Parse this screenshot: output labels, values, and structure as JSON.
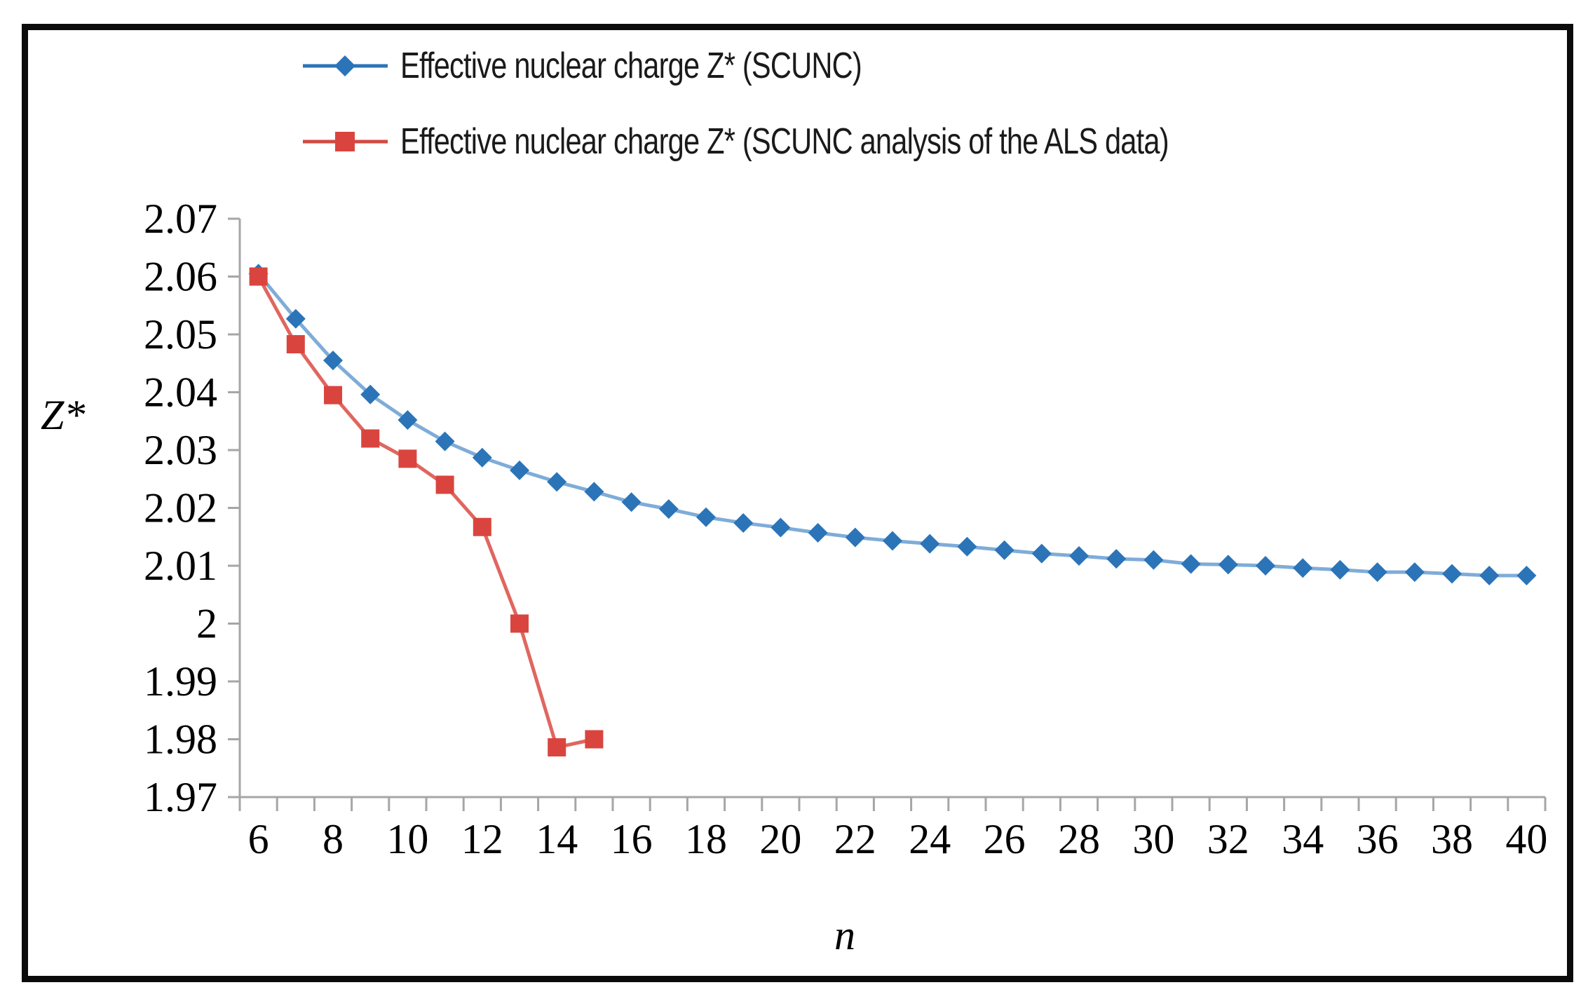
{
  "legend": {
    "items": [
      {
        "label": "Effective nuclear charge Z* (SCUNC)"
      },
      {
        "label": "Effective nuclear charge Z* (SCUNC analysis of the ALS data)"
      }
    ]
  },
  "colors": {
    "blue_marker": "#2B74B8",
    "blue_line": "#7FACD8",
    "red_marker": "#D9453E",
    "red_line": "#E0665F",
    "red_line_legend": "#D04B44",
    "axis": "#A6A6A6",
    "text": "#000000",
    "frame": "#0B0B0B"
  },
  "chart_data": {
    "type": "line",
    "title": "",
    "xlabel": "n",
    "ylabel": "Z*",
    "xlim": [
      6,
      40
    ],
    "ylim": [
      1.97,
      2.07
    ],
    "grid": false,
    "legend_position": "top-left",
    "x_tick_labels": [
      "6",
      "8",
      "10",
      "12",
      "14",
      "16",
      "18",
      "20",
      "22",
      "24",
      "26",
      "28",
      "30",
      "32",
      "34",
      "36",
      "38",
      "40"
    ],
    "x_tick_values": [
      6,
      8,
      10,
      12,
      14,
      16,
      18,
      20,
      22,
      24,
      26,
      28,
      30,
      32,
      34,
      36,
      38,
      40
    ],
    "y_tick_labels": [
      "2.07",
      "2.06",
      "2.05",
      "2.04",
      "2.03",
      "2.02",
      "2.01",
      "2",
      "1.99",
      "1.98",
      "1.97"
    ],
    "y_tick_values": [
      2.07,
      2.06,
      2.05,
      2.04,
      2.03,
      2.02,
      2.01,
      2.0,
      1.99,
      1.98,
      1.97
    ],
    "series": [
      {
        "name": "Effective nuclear charge Z* (SCUNC)",
        "marker": "diamond",
        "x": [
          6,
          7,
          8,
          9,
          10,
          11,
          12,
          13,
          14,
          15,
          16,
          17,
          18,
          19,
          20,
          21,
          22,
          23,
          24,
          25,
          26,
          27,
          28,
          29,
          30,
          31,
          32,
          33,
          34,
          35,
          36,
          37,
          38,
          39,
          40
        ],
        "y": [
          2.0605,
          2.0527,
          2.0455,
          2.0396,
          2.0352,
          2.0315,
          2.0287,
          2.0265,
          2.0245,
          2.0228,
          2.021,
          2.0198,
          2.0184,
          2.0174,
          2.0166,
          2.0157,
          2.0149,
          2.0143,
          2.0138,
          2.0133,
          2.0127,
          2.0121,
          2.0117,
          2.0112,
          2.011,
          2.0103,
          2.0102,
          2.01,
          2.0096,
          2.0093,
          2.0089,
          2.0089,
          2.0086,
          2.0083,
          2.0083
        ]
      },
      {
        "name": "Effective nuclear charge Z* (SCUNC analysis of the ALS data)",
        "marker": "square",
        "x": [
          6,
          7,
          8,
          9,
          10,
          11,
          12,
          13,
          14,
          15
        ],
        "y": [
          2.06,
          2.0483,
          2.0395,
          2.032,
          2.0285,
          2.024,
          2.0167,
          2.0,
          1.9786,
          1.98
        ]
      }
    ]
  }
}
